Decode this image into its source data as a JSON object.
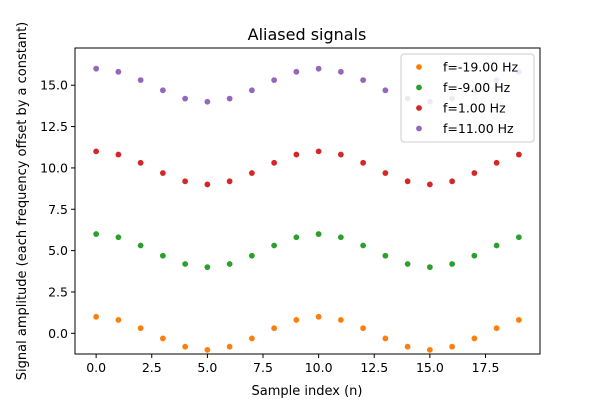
{
  "chart_data": {
    "type": "scatter",
    "title": "Aliased signals",
    "xlabel": "Sample index (n)",
    "ylabel": "Signal amplitude (each frequency offset by a constant)",
    "xlim": [
      -0.95,
      19.95
    ],
    "ylim": [
      -1.25,
      17.25
    ],
    "xticks": [
      0.0,
      2.5,
      5.0,
      7.5,
      10.0,
      12.5,
      15.0,
      17.5
    ],
    "xtick_labels": [
      "0.0",
      "2.5",
      "5.0",
      "7.5",
      "10.0",
      "12.5",
      "15.0",
      "17.5"
    ],
    "yticks": [
      0.0,
      2.5,
      5.0,
      7.5,
      10.0,
      12.5,
      15.0
    ],
    "ytick_labels": [
      "0.0",
      "2.5",
      "5.0",
      "7.5",
      "10.0",
      "12.5",
      "15.0"
    ],
    "grid": false,
    "legend_position": "top-right",
    "x": [
      0,
      1,
      2,
      3,
      4,
      5,
      6,
      7,
      8,
      9,
      10,
      11,
      12,
      13,
      14,
      15,
      16,
      17,
      18,
      19
    ],
    "series": [
      {
        "name": "f=-19.00 Hz",
        "color": "#ff7f0e",
        "values": [
          1.0,
          0.809,
          0.309,
          -0.309,
          -0.809,
          -1.0,
          -0.809,
          -0.309,
          0.309,
          0.809,
          1.0,
          0.809,
          0.309,
          -0.309,
          -0.809,
          -1.0,
          -0.809,
          -0.309,
          0.309,
          0.809
        ]
      },
      {
        "name": "f=-9.00 Hz",
        "color": "#2ca02c",
        "values": [
          6.0,
          5.809,
          5.309,
          4.691,
          4.191,
          4.0,
          4.191,
          4.691,
          5.309,
          5.809,
          6.0,
          5.809,
          5.309,
          4.691,
          4.191,
          4.0,
          4.191,
          4.691,
          5.309,
          5.809
        ]
      },
      {
        "name": "f=1.00 Hz",
        "color": "#d62728",
        "values": [
          11.0,
          10.809,
          10.309,
          9.691,
          9.191,
          9.0,
          9.191,
          9.691,
          10.309,
          10.809,
          11.0,
          10.809,
          10.309,
          9.691,
          9.191,
          9.0,
          9.191,
          9.691,
          10.309,
          10.809
        ]
      },
      {
        "name": "f=11.00 Hz",
        "color": "#9467bd",
        "values": [
          16.0,
          15.809,
          15.309,
          14.691,
          14.191,
          14.0,
          14.191,
          14.691,
          15.309,
          15.809,
          16.0,
          15.809,
          15.309,
          14.691,
          14.191,
          14.0,
          14.191,
          14.691,
          15.309,
          15.809
        ]
      }
    ]
  }
}
